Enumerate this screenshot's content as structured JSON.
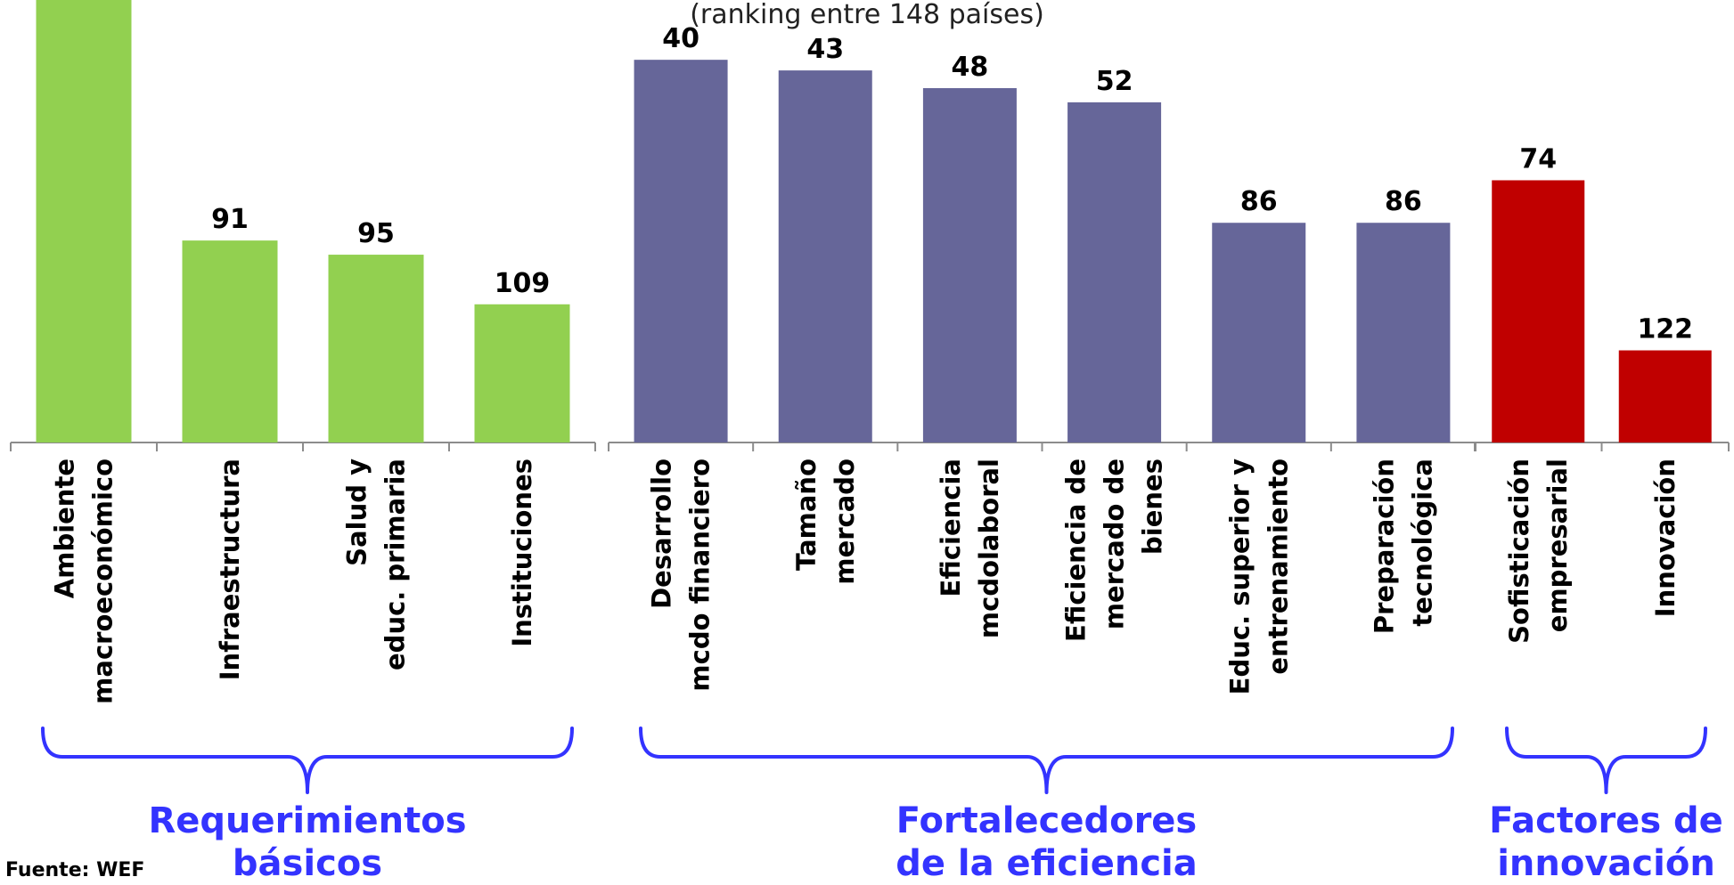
{
  "chart_data": {
    "type": "bar",
    "subtitle": "(ranking entre 148 países)",
    "source": "Fuente: WEF",
    "colors": {
      "basic": "#92d050",
      "efficiency": "#666699",
      "innovation": "#c00000",
      "brace": "#3333ff",
      "axis": "#8c8c8c"
    },
    "groups": [
      {
        "name": "Requerimientos básicos",
        "name_lines": [
          "Requerimientos",
          "básicos"
        ],
        "color": "#92d050",
        "categories": [
          {
            "label": "Ambiente macroeconómico",
            "lines": [
              "Ambiente",
              "macroeconómico"
            ],
            "value": 20
          },
          {
            "label": "Infraestructura",
            "lines": [
              "Infraestructura"
            ],
            "value": 91
          },
          {
            "label": "Salud y educ. primaria",
            "lines": [
              "Salud y",
              "educ. primaria"
            ],
            "value": 95
          },
          {
            "label": "Instituciones",
            "lines": [
              "Instituciones"
            ],
            "value": 109
          }
        ]
      },
      {
        "name": "Fortalecedores de la eficiencia",
        "name_lines": [
          "Fortalecedores",
          "de la eficiencia"
        ],
        "color": "#666699",
        "categories": [
          {
            "label": "Desarrollo mcdo financiero",
            "lines": [
              "Desarrollo",
              "mcdo financiero"
            ],
            "value": 40
          },
          {
            "label": "Tamaño mercado",
            "lines": [
              "Tamaño",
              "mercado"
            ],
            "value": 43
          },
          {
            "label": "Eficiencia mcdolaboral",
            "lines": [
              "Eficiencia",
              "mcdolaboral"
            ],
            "value": 48
          },
          {
            "label": "Eficiencia de mercado de bienes",
            "lines": [
              "Eficiencia de",
              "mercado de",
              "bienes"
            ],
            "value": 52
          },
          {
            "label": "Educ. superior y entrenamiento",
            "lines": [
              "Educ. superior y",
              "entrenamiento"
            ],
            "value": 86
          },
          {
            "label": "Preparación tecnológica",
            "lines": [
              "Preparación",
              "tecnológica"
            ],
            "value": 86
          }
        ]
      },
      {
        "name": "Factores de innovación",
        "name_lines": [
          "Factores de",
          "innovación"
        ],
        "color": "#c00000",
        "categories": [
          {
            "label": "Sofisticación empresarial",
            "lines": [
              "Sofisticación",
              "empresarial"
            ],
            "value": 74
          },
          {
            "label": "Innovación",
            "lines": [
              "Innovación"
            ],
            "value": 122
          }
        ]
      }
    ],
    "value_axis": {
      "reversed": true,
      "range": [
        0,
        148
      ]
    },
    "legend": "none",
    "grid": false
  }
}
